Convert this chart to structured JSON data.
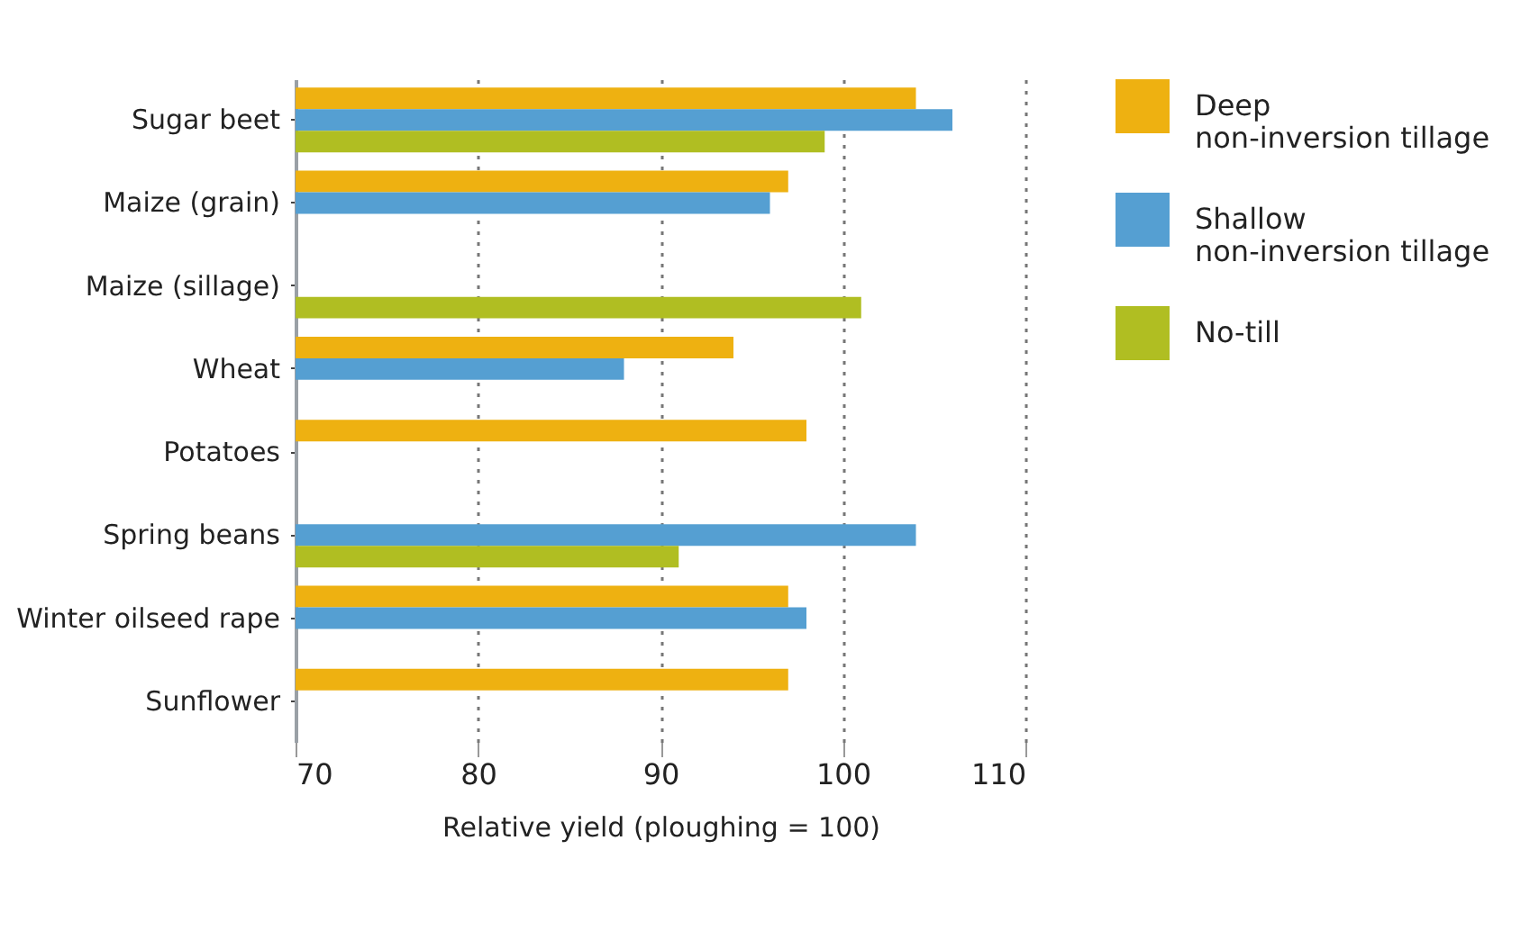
{
  "chart_data": {
    "type": "bar",
    "orientation": "horizontal",
    "xlabel": "Relative yield (ploughing = 100)",
    "categories": [
      "Sugar beet",
      "Maize (grain)",
      "Maize (sillage)",
      "Wheat",
      "Potatoes",
      "Spring beans",
      "Winter oilseed rape",
      "Sunflower"
    ],
    "series": [
      {
        "name": "Deep non-inversion tillage",
        "color": "#eeb111",
        "values": [
          104,
          97,
          null,
          94,
          98,
          null,
          97,
          97
        ]
      },
      {
        "name": "Shallow non-inversion tillage",
        "color": "#559fd2",
        "values": [
          106,
          96,
          null,
          88,
          null,
          104,
          98,
          null
        ]
      },
      {
        "name": "No-till",
        "color": "#b0be22",
        "values": [
          99,
          null,
          101,
          null,
          null,
          91,
          null,
          null
        ]
      }
    ],
    "xlim": [
      70,
      110
    ],
    "xticks": [
      70,
      80,
      90,
      100,
      110
    ],
    "grid": "x",
    "legend": "right"
  }
}
